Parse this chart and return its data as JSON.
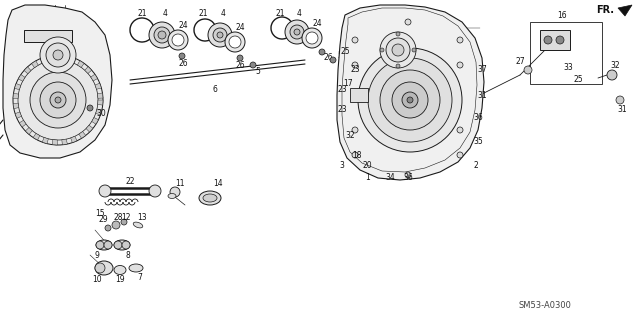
{
  "background_color": "#ffffff",
  "diagram_code": "SM53-A0300",
  "fr_label": "FR.",
  "line_color": "#1a1a1a",
  "label_color": "#111111",
  "lfs": 5.5,
  "dfs": 6.0
}
